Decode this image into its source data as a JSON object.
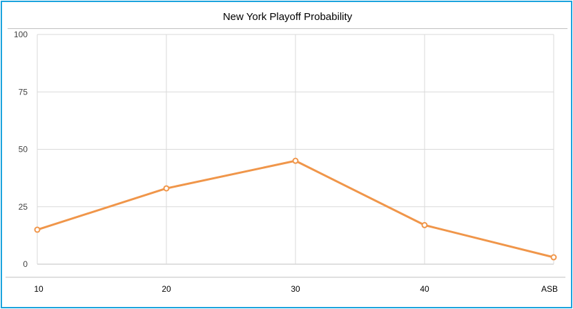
{
  "chart_data": {
    "type": "line",
    "title": "New York Playoff Probability",
    "categories": [
      "10",
      "20",
      "30",
      "40",
      "ASB"
    ],
    "series": [
      {
        "values": [
          15,
          33,
          45,
          17,
          3
        ]
      }
    ],
    "yticks": [
      "0",
      "25",
      "50",
      "75",
      "100"
    ],
    "ylim": [
      0,
      100
    ],
    "grid": true,
    "colors": {
      "line": "#f0964a",
      "grid": "#d9d9d9",
      "frame": "#1aa3dd"
    }
  }
}
